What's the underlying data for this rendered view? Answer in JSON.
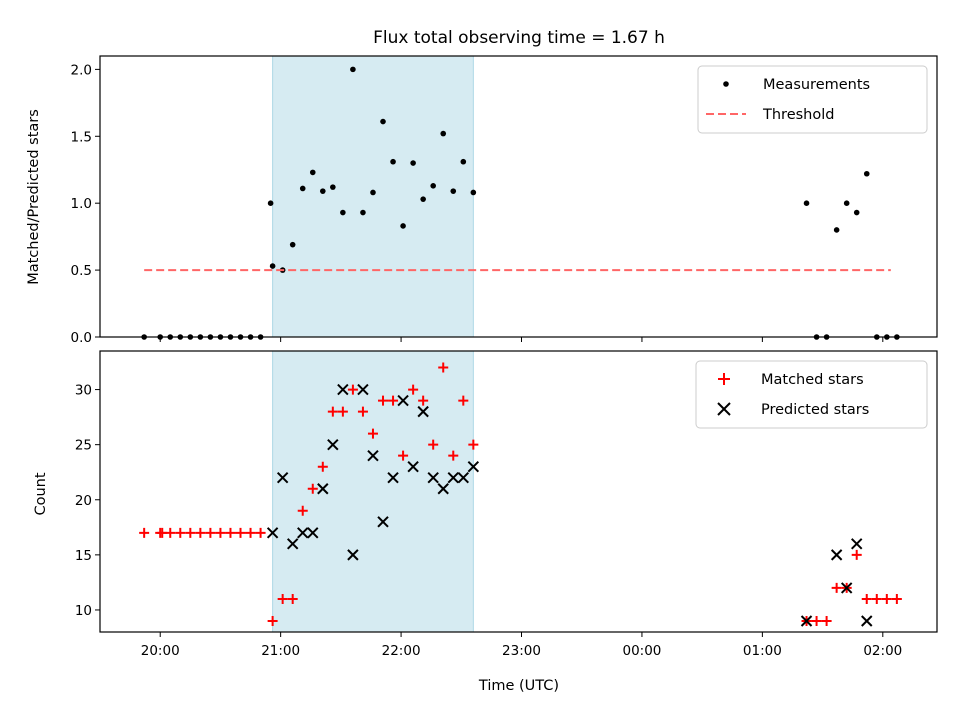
{
  "chart_data": {
    "type": "scatter",
    "title": "Flux total observing time = 1.67 h",
    "xlabel": "Time (UTC)",
    "xticks": [
      "20:00",
      "21:00",
      "22:00",
      "23:00",
      "00:00",
      "01:00",
      "02:00"
    ],
    "shaded_span": {
      "start": "20:56",
      "end": "22:36",
      "color": "#add8e6"
    },
    "panels": [
      {
        "ylabel": "Matched/Predicted stars",
        "ylim": [
          0,
          2.1
        ],
        "yticks": [
          "0.0",
          "0.5",
          "1.0",
          "1.5",
          "2.0"
        ],
        "legend_position": "upper right",
        "series": [
          {
            "name": "Measurements",
            "marker": "dot",
            "color": "#000000",
            "points": [
              [
                "19:52",
                0
              ],
              [
                "20:00",
                0
              ],
              [
                "20:05",
                0
              ],
              [
                "20:10",
                0
              ],
              [
                "20:15",
                0
              ],
              [
                "20:20",
                0
              ],
              [
                "20:25",
                0
              ],
              [
                "20:30",
                0
              ],
              [
                "20:35",
                0
              ],
              [
                "20:40",
                0
              ],
              [
                "20:45",
                0
              ],
              [
                "20:50",
                0
              ],
              [
                "20:55",
                1.0
              ],
              [
                "20:56",
                0.53
              ],
              [
                "21:01",
                0.5
              ],
              [
                "21:06",
                0.69
              ],
              [
                "21:11",
                1.11
              ],
              [
                "21:16",
                1.23
              ],
              [
                "21:21",
                1.09
              ],
              [
                "21:26",
                1.12
              ],
              [
                "21:31",
                0.93
              ],
              [
                "21:36",
                2.0
              ],
              [
                "21:41",
                0.93
              ],
              [
                "21:46",
                1.08
              ],
              [
                "21:51",
                1.61
              ],
              [
                "21:56",
                1.31
              ],
              [
                "22:01",
                0.83
              ],
              [
                "22:06",
                1.3
              ],
              [
                "22:11",
                1.03
              ],
              [
                "22:16",
                1.13
              ],
              [
                "22:21",
                1.52
              ],
              [
                "22:26",
                1.09
              ],
              [
                "22:31",
                1.31
              ],
              [
                "22:36",
                1.08
              ],
              [
                "01:22",
                1.0
              ],
              [
                "01:27",
                0
              ],
              [
                "01:32",
                0
              ],
              [
                "01:37",
                0.8
              ],
              [
                "01:42",
                1.0
              ],
              [
                "01:47",
                0.93
              ],
              [
                "01:52",
                1.22
              ],
              [
                "01:57",
                0
              ],
              [
                "02:02",
                0
              ],
              [
                "02:07",
                0
              ]
            ]
          },
          {
            "name": "Threshold",
            "style": "dashed",
            "color": "#ff6666",
            "points": [
              [
                "19:52",
                0.5
              ],
              [
                "02:04",
                0.5
              ]
            ]
          }
        ]
      },
      {
        "ylabel": "Count",
        "ylim": [
          8,
          33.5
        ],
        "yticks": [
          "10",
          "15",
          "20",
          "25",
          "30"
        ],
        "legend_position": "upper right",
        "series": [
          {
            "name": "Matched stars",
            "marker": "plus",
            "color": "#ff0000",
            "points": [
              [
                "19:52",
                17
              ],
              [
                "20:00",
                17
              ],
              [
                "20:01",
                17
              ],
              [
                "20:05",
                17
              ],
              [
                "20:10",
                17
              ],
              [
                "20:15",
                17
              ],
              [
                "20:20",
                17
              ],
              [
                "20:25",
                17
              ],
              [
                "20:30",
                17
              ],
              [
                "20:35",
                17
              ],
              [
                "20:40",
                17
              ],
              [
                "20:45",
                17
              ],
              [
                "20:50",
                17
              ],
              [
                "20:56",
                9
              ],
              [
                "21:01",
                11
              ],
              [
                "21:06",
                11
              ],
              [
                "21:11",
                19
              ],
              [
                "21:16",
                21
              ],
              [
                "21:21",
                23
              ],
              [
                "21:26",
                28
              ],
              [
                "21:31",
                28
              ],
              [
                "21:36",
                30
              ],
              [
                "21:41",
                28
              ],
              [
                "21:46",
                26
              ],
              [
                "21:51",
                29
              ],
              [
                "21:56",
                29
              ],
              [
                "22:01",
                24
              ],
              [
                "22:06",
                30
              ],
              [
                "22:11",
                29
              ],
              [
                "22:16",
                25
              ],
              [
                "22:21",
                32
              ],
              [
                "22:26",
                24
              ],
              [
                "22:31",
                29
              ],
              [
                "22:36",
                25
              ],
              [
                "01:22",
                9
              ],
              [
                "01:27",
                9
              ],
              [
                "01:32",
                9
              ],
              [
                "01:37",
                12
              ],
              [
                "01:42",
                12
              ],
              [
                "01:47",
                15
              ],
              [
                "01:52",
                11
              ],
              [
                "01:57",
                11
              ],
              [
                "02:02",
                11
              ],
              [
                "02:07",
                11
              ]
            ]
          },
          {
            "name": "Predicted stars",
            "marker": "x",
            "color": "#000000",
            "points": [
              [
                "20:56",
                17
              ],
              [
                "21:01",
                22
              ],
              [
                "21:06",
                16
              ],
              [
                "21:11",
                17
              ],
              [
                "21:16",
                17
              ],
              [
                "21:21",
                21
              ],
              [
                "21:26",
                25
              ],
              [
                "21:31",
                30
              ],
              [
                "21:36",
                15
              ],
              [
                "21:41",
                30
              ],
              [
                "21:46",
                24
              ],
              [
                "21:51",
                18
              ],
              [
                "21:56",
                22
              ],
              [
                "22:01",
                29
              ],
              [
                "22:06",
                23
              ],
              [
                "22:11",
                28
              ],
              [
                "22:16",
                22
              ],
              [
                "22:21",
                21
              ],
              [
                "22:26",
                22
              ],
              [
                "22:31",
                22
              ],
              [
                "22:36",
                23
              ],
              [
                "01:22",
                9
              ],
              [
                "01:37",
                15
              ],
              [
                "01:42",
                12
              ],
              [
                "01:47",
                16
              ],
              [
                "01:52",
                9
              ]
            ]
          }
        ]
      }
    ]
  }
}
